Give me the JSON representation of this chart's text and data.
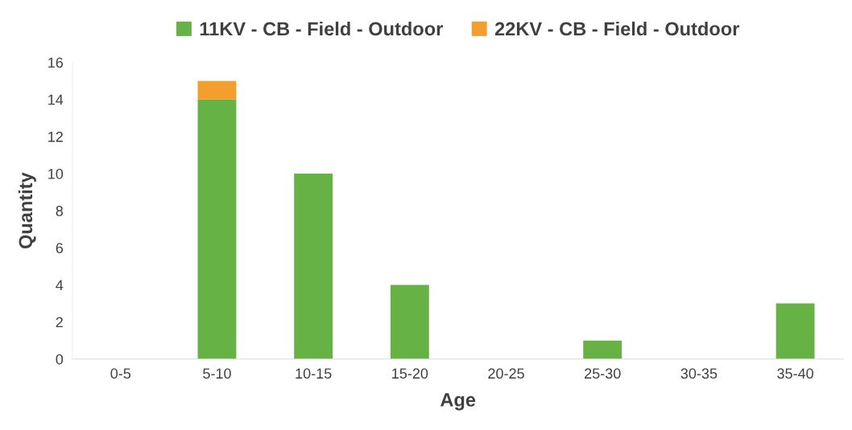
{
  "chart_data": {
    "type": "bar",
    "stacked": true,
    "xlabel": "Age",
    "ylabel": "Quantity",
    "categories": [
      "0-5",
      "5-10",
      "10-15",
      "15-20",
      "20-25",
      "25-30",
      "30-35",
      "35-40"
    ],
    "series": [
      {
        "name": "11KV - CB - Field - Outdoor",
        "color": "#66b245",
        "values": [
          0,
          14,
          10,
          4,
          0,
          1,
          0,
          3
        ]
      },
      {
        "name": "22KV - CB - Field - Outdoor",
        "color": "#f49e2e",
        "values": [
          0,
          1,
          0,
          0,
          0,
          0,
          0,
          0
        ]
      }
    ],
    "ylim": [
      0,
      16
    ],
    "yticks": [
      0,
      2,
      4,
      6,
      8,
      10,
      12,
      14,
      16
    ],
    "grid": false,
    "legend": "top"
  }
}
